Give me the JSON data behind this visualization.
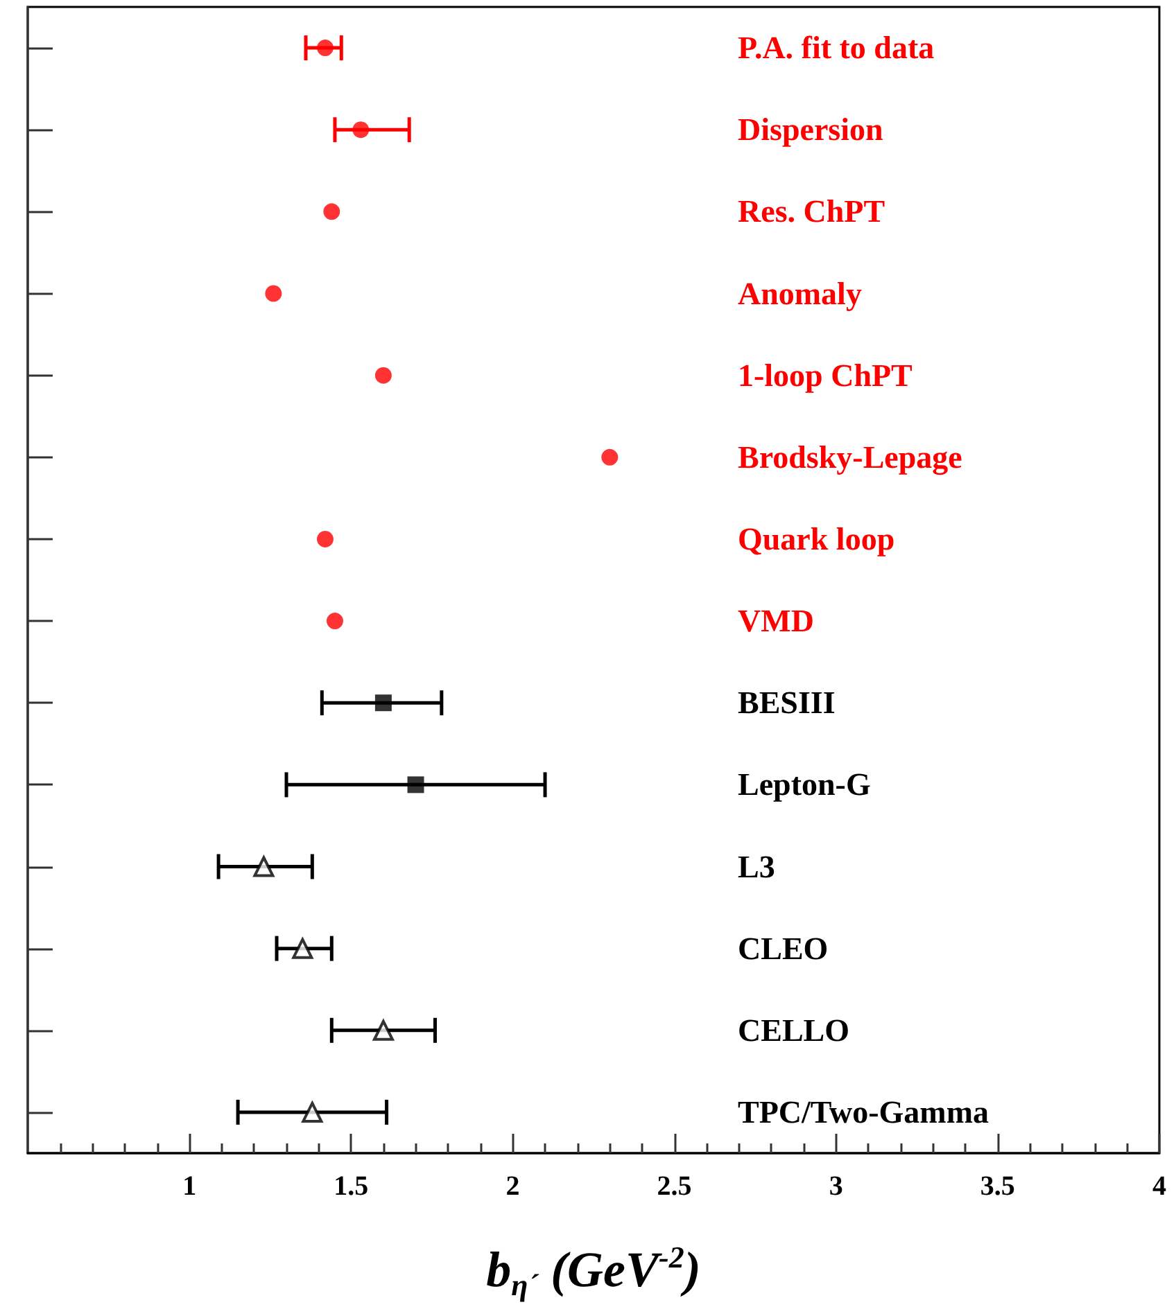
{
  "chart_data": {
    "type": "scatter",
    "orientation": "horizontal",
    "xlabel": "b$_{η´}$ (GeV$^{-2}$)",
    "categories": [
      "P.A. fit to data",
      "Dispersion",
      "Res. ChPT",
      "Anomaly",
      "1-loop ChPT",
      "Brodsky-Lepage",
      "Quark loop",
      "VMD",
      "BESIII",
      "Lepton-G",
      "L3",
      "CLEO",
      "CELLO",
      "TPC/Two-Gamma"
    ],
    "xlim": [
      0.5,
      4
    ],
    "xticks": [
      1,
      1.5,
      2,
      2.5,
      3,
      3.5,
      4
    ],
    "grid": false,
    "series": [
      {
        "color": "#ff0000",
        "marker": "circle",
        "values": [
          1.42,
          1.53,
          1.44,
          1.26,
          1.6,
          2.3,
          1.42,
          1.45,
          null,
          null,
          null,
          null,
          null,
          null
        ],
        "errors": [
          [
            1.36,
            1.47
          ],
          [
            1.45,
            1.68
          ],
          null,
          null,
          null,
          null,
          null,
          null,
          null,
          null,
          null,
          null,
          null,
          null
        ]
      },
      {
        "color": "#000000",
        "marker": "square",
        "values": [
          null,
          null,
          null,
          null,
          null,
          null,
          null,
          null,
          1.6,
          1.7,
          null,
          null,
          null,
          null
        ],
        "errors": [
          null,
          null,
          null,
          null,
          null,
          null,
          null,
          null,
          [
            1.41,
            1.78
          ],
          [
            1.3,
            2.1
          ],
          null,
          null,
          null,
          null
        ]
      },
      {
        "color": "#000000",
        "marker": "triangle",
        "values": [
          null,
          null,
          null,
          null,
          null,
          null,
          null,
          null,
          null,
          null,
          1.23,
          1.35,
          1.6,
          1.38
        ],
        "errors": [
          null,
          null,
          null,
          null,
          null,
          null,
          null,
          null,
          null,
          null,
          [
            1.09,
            1.38
          ],
          [
            1.27,
            1.44
          ],
          [
            1.44,
            1.76
          ],
          [
            1.15,
            1.61
          ]
        ]
      }
    ]
  }
}
